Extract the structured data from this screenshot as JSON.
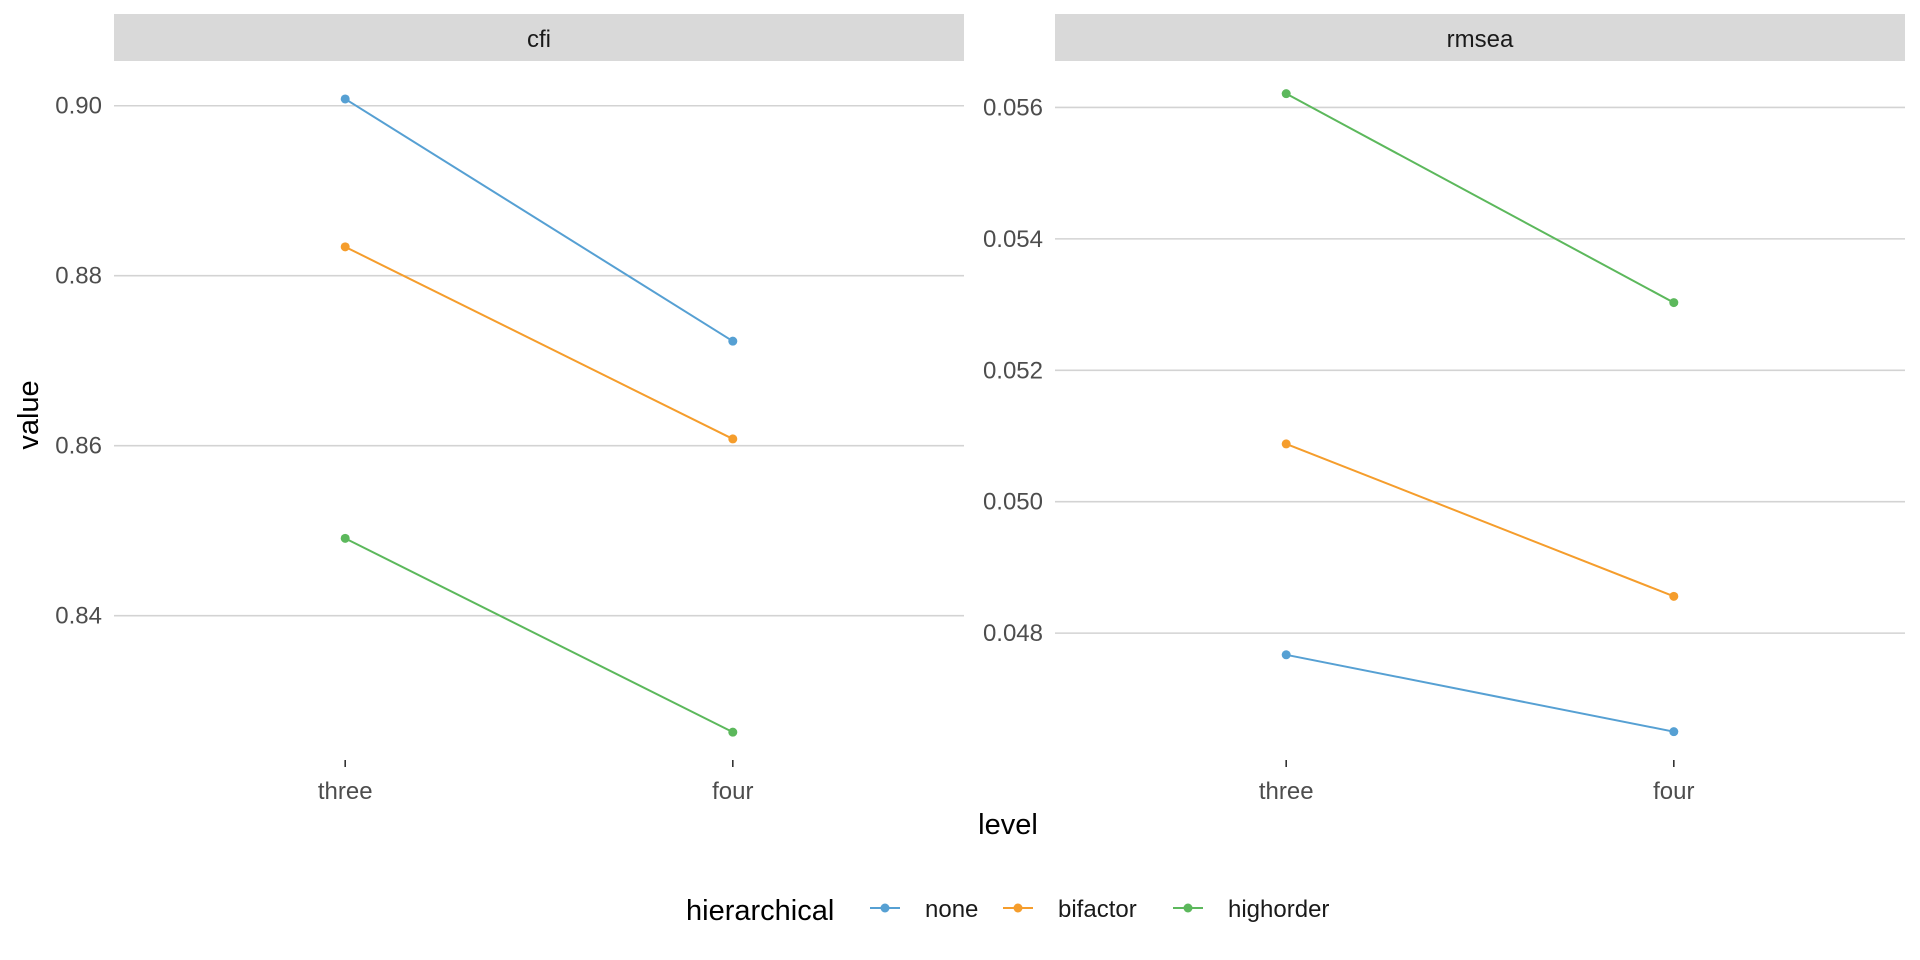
{
  "chart_data": {
    "type": "line",
    "facet_label": "",
    "xlabel": "level",
    "ylabel": "value",
    "categories": [
      "three",
      "four"
    ],
    "legend": {
      "title": "hierarchical",
      "position": "bottom",
      "entries": [
        "none",
        "bifactor",
        "highorder"
      ]
    },
    "colors": {
      "none": "#56a0d3",
      "bifactor": "#f59d2c",
      "highorder": "#5cb85c"
    },
    "grid": "horizontal major",
    "panels": [
      {
        "title": "cfi",
        "ylim": [
          0.8262,
          0.9015
        ],
        "yticks": [
          0.84,
          0.86,
          0.88,
          0.9
        ],
        "ytick_labels": [
          "0.84",
          "0.86",
          "0.88",
          "0.90"
        ],
        "series": [
          {
            "name": "none",
            "values": [
              0.9008,
              0.8723
            ]
          },
          {
            "name": "bifactor",
            "values": [
              0.8834,
              0.8608
            ]
          },
          {
            "name": "highorder",
            "values": [
              0.8491,
              0.8263
            ]
          }
        ]
      },
      {
        "title": "rmsea",
        "ylim": [
          0.04648,
          0.05622
        ],
        "yticks": [
          0.048,
          0.05,
          0.052,
          0.054,
          0.056
        ],
        "ytick_labels": [
          "0.048",
          "0.050",
          "0.052",
          "0.054",
          "0.056"
        ],
        "series": [
          {
            "name": "none",
            "values": [
              0.04767,
              0.0465
            ]
          },
          {
            "name": "bifactor",
            "values": [
              0.05088,
              0.04856
            ]
          },
          {
            "name": "highorder",
            "values": [
              0.05621,
              0.05303
            ]
          }
        ]
      }
    ]
  }
}
